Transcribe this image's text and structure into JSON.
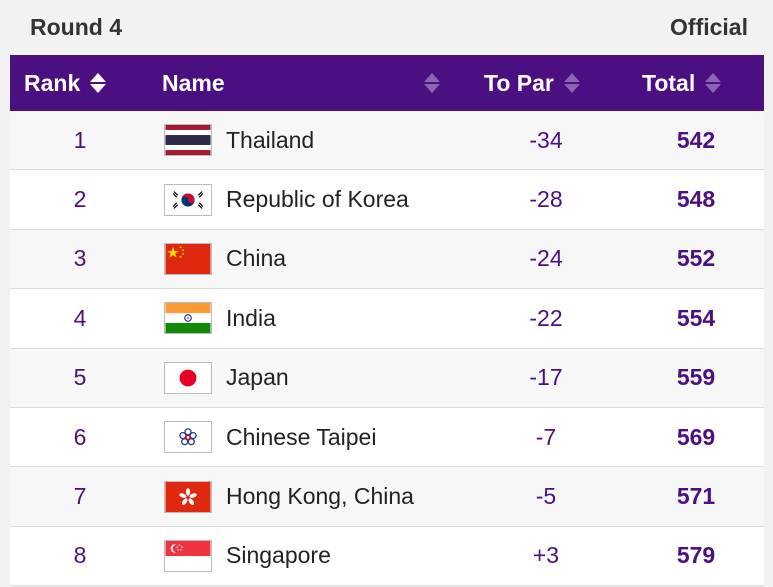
{
  "header": {
    "round": "Round 4",
    "status": "Official"
  },
  "columns": {
    "rank": "Rank",
    "name": "Name",
    "to_par": "To Par",
    "total": "Total"
  },
  "colors": {
    "header_bg": "#4b0f82",
    "accent": "#4b0f82"
  },
  "rows": [
    {
      "rank": "1",
      "name": "Thailand",
      "to_par": "-34",
      "total": "542",
      "flag": "thailand-flag-icon"
    },
    {
      "rank": "2",
      "name": "Republic of Korea",
      "to_par": "-28",
      "total": "548",
      "flag": "korea-flag-icon"
    },
    {
      "rank": "3",
      "name": "China",
      "to_par": "-24",
      "total": "552",
      "flag": "china-flag-icon"
    },
    {
      "rank": "4",
      "name": "India",
      "to_par": "-22",
      "total": "554",
      "flag": "india-flag-icon"
    },
    {
      "rank": "5",
      "name": "Japan",
      "to_par": "-17",
      "total": "559",
      "flag": "japan-flag-icon"
    },
    {
      "rank": "6",
      "name": "Chinese Taipei",
      "to_par": "-7",
      "total": "569",
      "flag": "chinese-taipei-flag-icon"
    },
    {
      "rank": "7",
      "name": "Hong Kong, China",
      "to_par": "-5",
      "total": "571",
      "flag": "hong-kong-flag-icon"
    },
    {
      "rank": "8",
      "name": "Singapore",
      "to_par": "+3",
      "total": "579",
      "flag": "singapore-flag-icon"
    }
  ]
}
